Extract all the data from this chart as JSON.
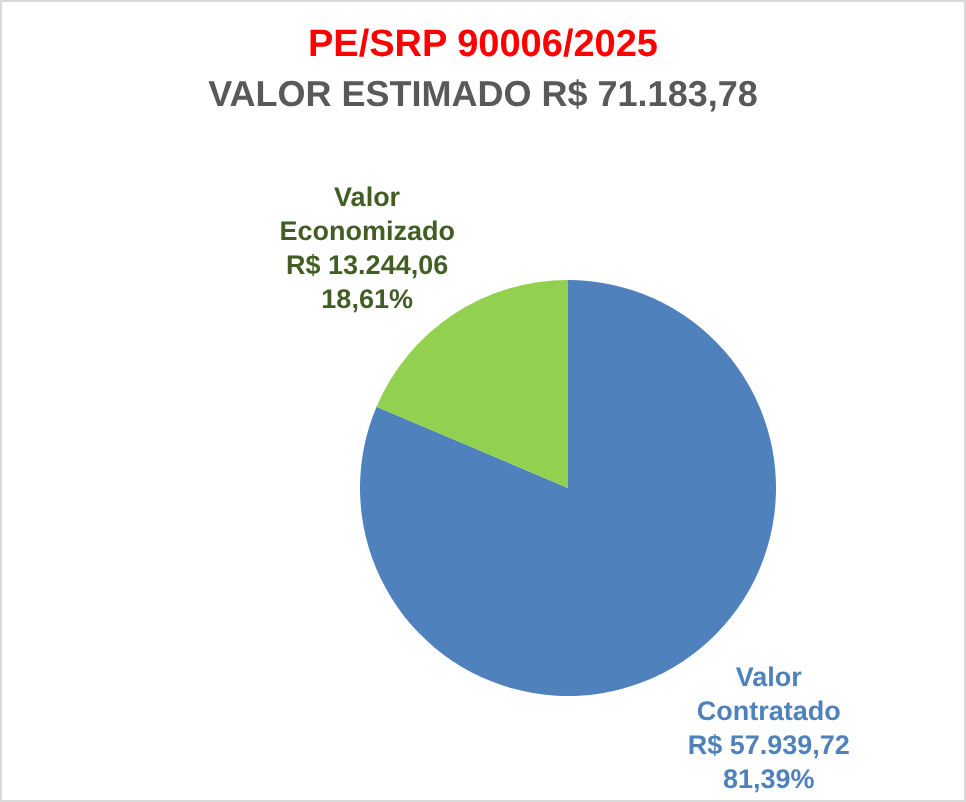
{
  "chart_data": {
    "type": "pie",
    "title": "PE/SRP 90006/2025",
    "subtitle": "VALOR ESTIMADO R$ 71.183,78",
    "categories": [
      "Valor Contratado",
      "Valor Economizado"
    ],
    "values": [
      57939.72,
      13244.06
    ],
    "colors": [
      "#4f81bd",
      "#92d050"
    ],
    "value_labels": [
      "R$ 57.939,72\n81,39%",
      "R$ 13.244,06\n18,61%"
    ]
  }
}
